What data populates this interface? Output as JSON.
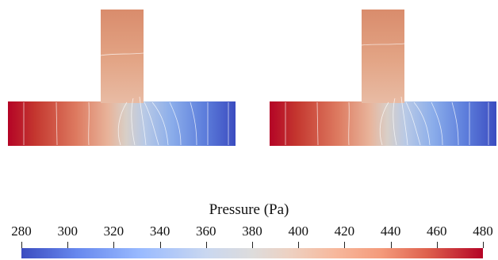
{
  "colorbar": {
    "title": "Pressure (Pa)",
    "min": 280,
    "max": 480,
    "ticks": [
      "280",
      "300",
      "320",
      "340",
      "360",
      "380",
      "400",
      "420",
      "440",
      "460",
      "480"
    ],
    "colormap": [
      "#3b4cc0",
      "#6788ee",
      "#9abbff",
      "#c9d7f0",
      "#dddcdc",
      "#edd1c2",
      "#f7b89c",
      "#f49a7b",
      "#de604d",
      "#b40426"
    ]
  },
  "panels": [
    {
      "name": "left-tee-pressure-field"
    },
    {
      "name": "right-tee-pressure-field"
    }
  ]
}
